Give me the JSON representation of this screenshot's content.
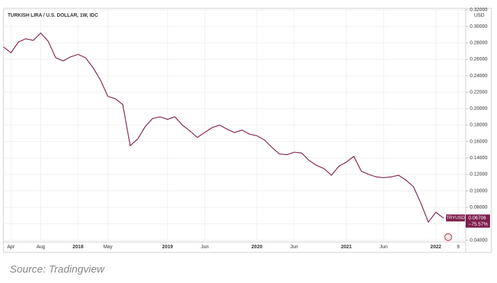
{
  "chart_data": {
    "type": "line",
    "title": "TURKISH LIRA / U.S. DOLLAR, 1W, IDC",
    "y_unit": "USD",
    "source": "Source: Tradingview",
    "x": [
      "2017-03",
      "2017-04",
      "2017-05",
      "2017-06",
      "2017-07",
      "2017-08",
      "2017-09",
      "2017-10",
      "2017-11",
      "2017-12",
      "2018-01",
      "2018-02",
      "2018-03",
      "2018-04",
      "2018-05",
      "2018-06",
      "2018-07",
      "2018-08",
      "2018-09",
      "2018-10",
      "2018-11",
      "2018-12",
      "2019-01",
      "2019-02",
      "2019-03",
      "2019-04",
      "2019-05",
      "2019-06",
      "2019-07",
      "2019-08",
      "2019-09",
      "2019-10",
      "2019-11",
      "2019-12",
      "2020-01",
      "2020-02",
      "2020-03",
      "2020-04",
      "2020-05",
      "2020-06",
      "2020-07",
      "2020-08",
      "2020-09",
      "2020-10",
      "2020-11",
      "2020-12",
      "2021-01",
      "2021-02",
      "2021-03",
      "2021-04",
      "2021-05",
      "2021-06",
      "2021-07",
      "2021-08",
      "2021-09",
      "2021-10",
      "2021-11",
      "2021-12",
      "2022-01",
      "2022-02"
    ],
    "series": [
      {
        "name": "TRYUSD",
        "color": "#7e1f4e",
        "values": [
          0.275,
          0.268,
          0.281,
          0.285,
          0.283,
          0.292,
          0.282,
          0.262,
          0.258,
          0.263,
          0.266,
          0.262,
          0.25,
          0.235,
          0.215,
          0.212,
          0.205,
          0.155,
          0.163,
          0.178,
          0.188,
          0.19,
          0.187,
          0.19,
          0.18,
          0.173,
          0.165,
          0.171,
          0.177,
          0.18,
          0.175,
          0.171,
          0.174,
          0.169,
          0.167,
          0.162,
          0.153,
          0.145,
          0.144,
          0.147,
          0.146,
          0.137,
          0.131,
          0.127,
          0.119,
          0.13,
          0.135,
          0.142,
          0.124,
          0.12,
          0.117,
          0.116,
          0.117,
          0.119,
          0.113,
          0.105,
          0.085,
          0.062,
          0.074,
          0.06706
        ]
      }
    ],
    "change_label": "−75.57%",
    "xlim": [
      "2017-03",
      "2022-05"
    ],
    "xticks": [
      {
        "value": "2017-04",
        "label": "Apr"
      },
      {
        "value": "2017-08",
        "label": "Aug"
      },
      {
        "value": "2018-01",
        "label": "2018"
      },
      {
        "value": "2018-05",
        "label": "May"
      },
      {
        "value": "2019-01",
        "label": "2019"
      },
      {
        "value": "2019-06",
        "label": "Jun"
      },
      {
        "value": "2020-01",
        "label": "2020"
      },
      {
        "value": "2020-06",
        "label": "Jun"
      },
      {
        "value": "2021-01",
        "label": "2021"
      },
      {
        "value": "2021-06",
        "label": "Jun"
      },
      {
        "value": "2022-01",
        "label": "2022"
      },
      {
        "value": "2022-04",
        "label": "9"
      }
    ],
    "ylim": [
      0.026,
      0.322
    ],
    "yticks": [
      {
        "value": 0.04,
        "label": "0.04000"
      },
      {
        "value": 0.06,
        "label": "0.06000"
      },
      {
        "value": 0.08,
        "label": "0.08000"
      },
      {
        "value": 0.1,
        "label": "0.10000"
      },
      {
        "value": 0.12,
        "label": "0.12000"
      },
      {
        "value": 0.14,
        "label": "0.14000"
      },
      {
        "value": 0.16,
        "label": "0.16000"
      },
      {
        "value": 0.18,
        "label": "0.18000"
      },
      {
        "value": 0.2,
        "label": "0.20000"
      },
      {
        "value": 0.22,
        "label": "0.22000"
      },
      {
        "value": 0.24,
        "label": "0.24000"
      },
      {
        "value": 0.26,
        "label": "0.26000"
      },
      {
        "value": 0.28,
        "label": "0.28000"
      },
      {
        "value": 0.3,
        "label": "0.30000"
      },
      {
        "value": 0.32,
        "label": "0.32000"
      }
    ],
    "grid": true
  }
}
